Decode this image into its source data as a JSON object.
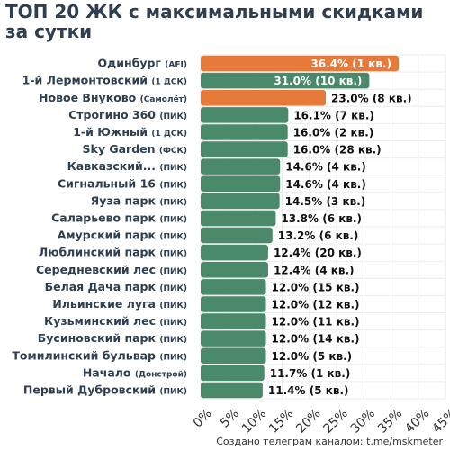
{
  "title": "ТОП 20 ЖК с максимальными скидками за сутки",
  "footer": "Создано телеграм каналом: t.me/mskmeter",
  "colors": {
    "highlight": "#e57a3a",
    "normal": "#4a8a6a",
    "title": "#2d3f50"
  },
  "chart_data": {
    "type": "bar",
    "orientation": "horizontal",
    "grid": true,
    "xlim": [
      0,
      45
    ],
    "x_ticks": [
      "0%",
      "5%",
      "10%",
      "15%",
      "20%",
      "25%",
      "30%",
      "35%",
      "40%",
      "45%"
    ],
    "bars": [
      {
        "name": "Одинбург",
        "dev": "(AFI)",
        "value": 36.4,
        "label": "36.4% (1 кв.)",
        "highlight": true
      },
      {
        "name": "1-й Лермонтовский",
        "dev": "(1 ДСК)",
        "value": 31.0,
        "label": "31.0% (10 кв.)",
        "highlight": false
      },
      {
        "name": "Новое Внуково",
        "dev": "(Самолёт)",
        "value": 23.0,
        "label": "23.0% (8 кв.)",
        "highlight": true
      },
      {
        "name": "Строгино 360",
        "dev": "(ПИК)",
        "value": 16.1,
        "label": "16.1% (7 кв.)",
        "highlight": false
      },
      {
        "name": "1-й Южный",
        "dev": "(1 ДСК)",
        "value": 16.0,
        "label": "16.0% (2 кв.)",
        "highlight": false
      },
      {
        "name": "Sky Garden",
        "dev": "(ФСК)",
        "value": 16.0,
        "label": "16.0% (28 кв.)",
        "highlight": false
      },
      {
        "name": "Кавказский...",
        "dev": "(ПИК)",
        "value": 14.6,
        "label": "14.6% (4 кв.)",
        "highlight": false
      },
      {
        "name": "Сигнальный 16",
        "dev": "(ПИК)",
        "value": 14.6,
        "label": "14.6% (4 кв.)",
        "highlight": false
      },
      {
        "name": "Яуза парк",
        "dev": "(ПИК)",
        "value": 14.5,
        "label": "14.5% (3 кв.)",
        "highlight": false
      },
      {
        "name": "Саларьево парк",
        "dev": "(ПИК)",
        "value": 13.8,
        "label": "13.8% (6 кв.)",
        "highlight": false
      },
      {
        "name": "Амурский парк",
        "dev": "(ПИК)",
        "value": 13.2,
        "label": "13.2% (6 кв.)",
        "highlight": false
      },
      {
        "name": "Люблинский парк",
        "dev": "(ПИК)",
        "value": 12.4,
        "label": "12.4% (20 кв.)",
        "highlight": false
      },
      {
        "name": "Середневский лес",
        "dev": "(ПИК)",
        "value": 12.4,
        "label": "12.4% (4 кв.)",
        "highlight": false
      },
      {
        "name": "Белая Дача парк",
        "dev": "(ПИК)",
        "value": 12.0,
        "label": "12.0% (15 кв.)",
        "highlight": false
      },
      {
        "name": "Ильинские луга",
        "dev": "(ПИК)",
        "value": 12.0,
        "label": "12.0% (12 кв.)",
        "highlight": false
      },
      {
        "name": "Кузьминский лес",
        "dev": "(ПИК)",
        "value": 12.0,
        "label": "12.0% (11 кв.)",
        "highlight": false
      },
      {
        "name": "Бусиновский парк",
        "dev": "(ПИК)",
        "value": 12.0,
        "label": "12.0% (14 кв.)",
        "highlight": false
      },
      {
        "name": "Томилинский бульвар",
        "dev": "(ПИК)",
        "value": 12.0,
        "label": "12.0% (5 кв.)",
        "highlight": false
      },
      {
        "name": "Начало",
        "dev": "(Донстрой)",
        "value": 11.7,
        "label": "11.7% (1 кв.)",
        "highlight": false
      },
      {
        "name": "Первый Дубровский",
        "dev": "(ПИК)",
        "value": 11.4,
        "label": "11.4% (5 кв.)",
        "highlight": false
      }
    ]
  }
}
